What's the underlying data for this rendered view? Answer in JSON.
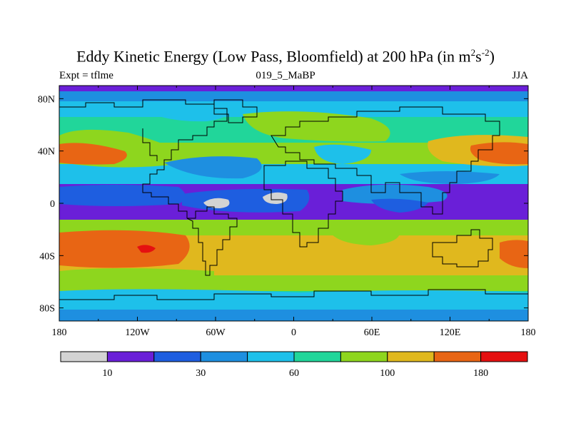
{
  "title": {
    "main": "Eddy Kinetic Energy (Low Pass, Bloomfield) at 200 hPa (in m",
    "sup1": "2",
    "mid": "s",
    "sup2": "-2",
    "end": ")"
  },
  "subtitle": {
    "left": "Expt = tflme",
    "center": "019_5_MaBP",
    "right": "JJA"
  },
  "axes": {
    "lon_ticks": [
      "180",
      "120W",
      "60W",
      "0",
      "60E",
      "120E",
      "180"
    ],
    "lat_ticks": [
      "80N",
      "40N",
      "0",
      "40S",
      "80S"
    ],
    "lon_range": [
      -180,
      180
    ],
    "lat_range": [
      -90,
      90
    ]
  },
  "colorbar": {
    "colors": [
      "#d3d3d3",
      "#6a1fd8",
      "#1e5ee0",
      "#1e8fe0",
      "#1ec0ea",
      "#21d69a",
      "#8ed61e",
      "#e0b81e",
      "#e86514",
      "#e51010"
    ],
    "labels": [
      {
        "text": "10",
        "index": 1
      },
      {
        "text": "30",
        "index": 3
      },
      {
        "text": "60",
        "index": 5
      },
      {
        "text": "100",
        "index": 7
      },
      {
        "text": "180",
        "index": 9
      }
    ]
  }
}
